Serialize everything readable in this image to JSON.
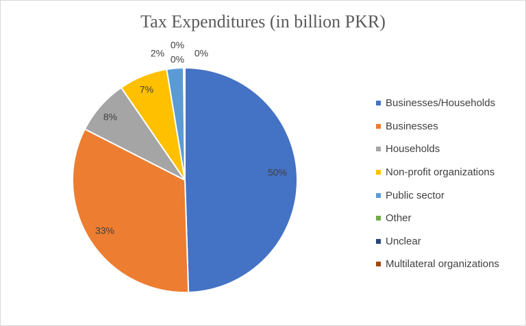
{
  "chart_data": {
    "type": "pie",
    "title": "Tax Expenditures (in billion PKR)",
    "categories": [
      "Businesses/Households",
      "Businesses",
      "Households",
      "Non-profit organizations",
      "Public sector",
      "Other",
      "Unclear",
      "Multilateral organizations"
    ],
    "values": [
      49.5,
      33.0,
      7.9,
      7.0,
      2.4,
      0.1,
      0.05,
      0.05
    ],
    "data_labels": [
      "50%",
      "33%",
      "8%",
      "7%",
      "2%",
      "0%",
      "0%",
      "0%"
    ],
    "colors": [
      "#4472C4",
      "#ED7D31",
      "#A5A5A5",
      "#FFC000",
      "#5B9BD5",
      "#70AD47",
      "#264478",
      "#9E480E"
    ],
    "legend_position": "right"
  }
}
